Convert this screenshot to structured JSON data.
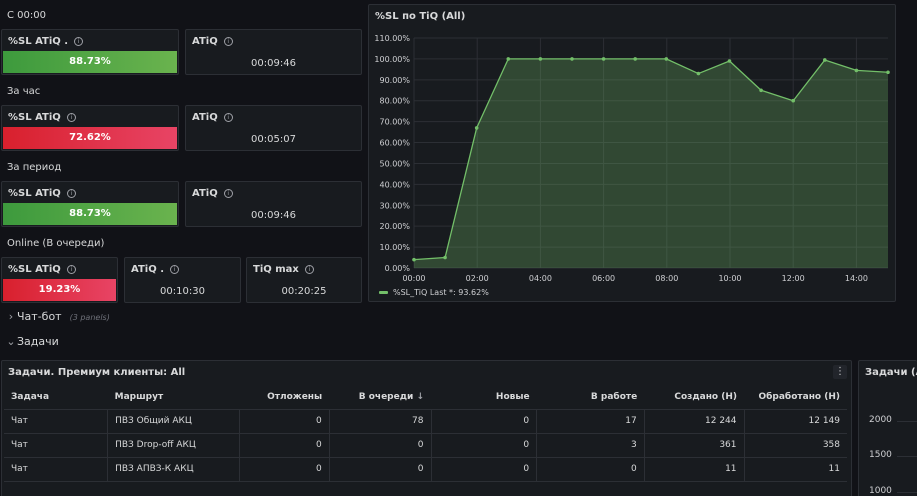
{
  "sections": {
    "since_midnight": "С 00:00",
    "per_hour": "За час",
    "per_period": "За период",
    "online": "Online (В очереди)"
  },
  "stats": {
    "r1": {
      "sl_title": "%SL ATiQ .",
      "sl_value": "88.73%",
      "sl_color": "#6ab34e",
      "atiq_title": "ATiQ",
      "atiq_value": "00:09:46"
    },
    "r2": {
      "sl_title": "%SL ATiQ",
      "sl_value": "72.62%",
      "sl_color": "#e02f44",
      "atiq_title": "ATiQ",
      "atiq_value": "00:05:07"
    },
    "r3": {
      "sl_title": "%SL ATiQ",
      "sl_value": "88.73%",
      "sl_color": "#6ab34e",
      "atiq_title": "ATiQ",
      "atiq_value": "00:09:46"
    },
    "r4": {
      "sl_title": "%SL ATiQ",
      "sl_value": "19.23%",
      "sl_color": "#e02f44",
      "atiq_title": "ATiQ .",
      "atiq_value": "00:10:30",
      "tiq_title": "TiQ max",
      "tiq_value": "00:20:25"
    }
  },
  "chart_panel": {
    "title": "%SL по TiQ (All)"
  },
  "chart_data": {
    "type": "area",
    "title": "%SL по TiQ (All)",
    "x": [
      "00:00",
      "00:59",
      "01:59",
      "02:59",
      "04:00",
      "05:00",
      "06:00",
      "07:00",
      "07:59",
      "09:00",
      "09:59",
      "10:59",
      "12:00",
      "13:00",
      "14:00",
      "15:00"
    ],
    "series": [
      {
        "name": "%SL_TiQ",
        "values": [
          4,
          5,
          67,
          100,
          100,
          100,
          100,
          100,
          100,
          93,
          99,
          85,
          80,
          99.5,
          94.5,
          93.62
        ],
        "color": "#73bf69"
      }
    ],
    "ylim": [
      0,
      110
    ],
    "yticks": [
      "0.00%",
      "10.00%",
      "20.00%",
      "30.00%",
      "40.00%",
      "50.00%",
      "60.00%",
      "70.00%",
      "80.00%",
      "90.00%",
      "100.00%",
      "110.00%"
    ],
    "xticks": [
      "00:00",
      "02:00",
      "04:00",
      "06:00",
      "08:00",
      "10:00",
      "12:00",
      "14:00"
    ],
    "legend": {
      "label": "%SL_TiQ",
      "last_label": "Last *:",
      "last_value": "93.62%"
    },
    "grid": true
  },
  "rows": {
    "chatbot": {
      "label": "Чат-бот",
      "hint": "(3 panels)",
      "chevron": "›"
    },
    "tasks": {
      "label": "Задачи",
      "chevron": "⌄"
    }
  },
  "tasks_table": {
    "title": "Задачи. Премиум клиенты: All",
    "menu": "⋮",
    "headers": [
      "Задача",
      "Маршрут",
      "Отложены",
      "В очереди",
      "Новые",
      "В работе",
      "Создано (Н)",
      "Обработано (Н)"
    ],
    "sort_arrow": "↓",
    "rows": [
      [
        "Чат",
        "ПВЗ Общий АКЦ",
        "0",
        "78",
        "0",
        "17",
        "12 244",
        "12 149"
      ],
      [
        "Чат",
        "ПВЗ Drop-off АКЦ",
        "0",
        "0",
        "0",
        "3",
        "361",
        "358"
      ],
      [
        "Чат",
        "ПВЗ АПВЗ-К АКЦ",
        "0",
        "0",
        "0",
        "0",
        "11",
        "11"
      ]
    ]
  },
  "side_panel": {
    "title": "Задачи (All)",
    "yticks": [
      "2000",
      "1500",
      "1000"
    ]
  }
}
